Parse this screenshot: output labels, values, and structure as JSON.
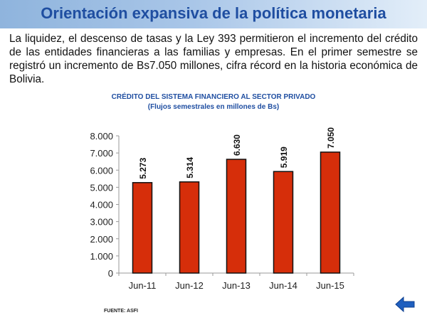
{
  "header": {
    "title": "Orientación expansiva de la política monetaria"
  },
  "paragraph": "La liquidez, el descenso de tasas y la Ley 393 permitieron el incremento del crédito de las entidades financieras a las familias y empresas. En el primer semestre se registró un incremento de Bs7.050 millones, cifra récord en la historia económica de Bolivia.",
  "chart_data": {
    "type": "bar",
    "title": "CRÉDITO DEL SISTEMA FINANCIERO AL SECTOR PRIVADO",
    "subtitle": "(Flujos semestrales en millones de Bs)",
    "categories": [
      "Jun-11",
      "Jun-12",
      "Jun-13",
      "Jun-14",
      "Jun-15"
    ],
    "values": [
      5273,
      5314,
      6630,
      5919,
      7050
    ],
    "value_labels": [
      "5.273",
      "5.314",
      "6.630",
      "5.919",
      "7.050"
    ],
    "yticks": [
      "0",
      "1.000",
      "2.000",
      "3.000",
      "4.000",
      "5.000",
      "6.000",
      "7.000",
      "8.000"
    ],
    "ylim": [
      0,
      8000
    ],
    "xlabel": "",
    "ylabel": "",
    "grid": false,
    "bar_color": "#d62e0a"
  },
  "footer": {
    "source": "FUENTE: ASFI"
  },
  "nav": {
    "back_icon": "left-arrow-icon"
  }
}
